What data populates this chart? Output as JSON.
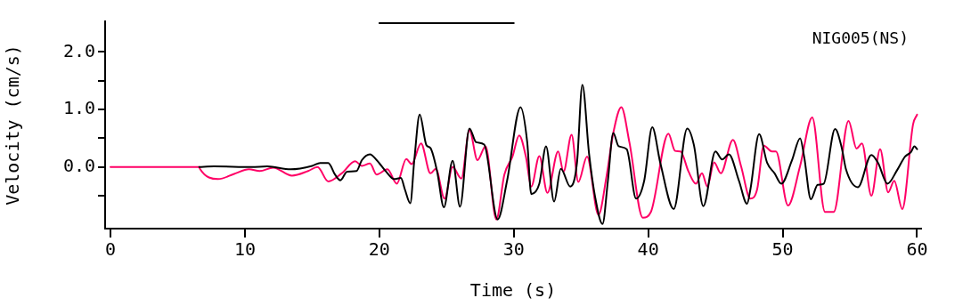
{
  "chart_data": {
    "type": "line",
    "xlabel": "Time (s)",
    "ylabel": "Velocity (cm/s)",
    "annotations": [
      "NIG005(NS)"
    ],
    "xlim": [
      -0.4,
      60.3
    ],
    "xticks": [
      0,
      10,
      20,
      30,
      40,
      50,
      60
    ],
    "ylim": [
      -1.07,
      2.53
    ],
    "yticks": [
      {
        "value": -0.5,
        "label": null
      },
      {
        "value": 0,
        "label": "0.0"
      },
      {
        "value": 0.5,
        "label": null
      },
      {
        "value": 1,
        "label": "1.0"
      },
      {
        "value": 1.5,
        "label": null
      },
      {
        "value": 2,
        "label": "2.0"
      }
    ],
    "grid": false,
    "legend": false,
    "marker": "none",
    "line_style": "solid",
    "series": [
      {
        "color": "#000000",
        "x": [
          20,
          30
        ],
        "values": [
          2.5,
          2.5
        ]
      },
      {
        "color": "#000000",
        "x": [
          6.6,
          7.7,
          10.5,
          11.66,
          13.4,
          15.0,
          15.6,
          16.2,
          16.7,
          17.1,
          17.6,
          18.3,
          18.7,
          19.3,
          19.8,
          20.5,
          21.1,
          21.6,
          21.9,
          22.3,
          22.6,
          23.0,
          23.5,
          23.8,
          24.3,
          24.8,
          25.45,
          26.0,
          26.7,
          27.2,
          27.8,
          28.8,
          29.5,
          30.5,
          31.0,
          31.3,
          31.9,
          32.4,
          33.0,
          33.5,
          34.2,
          34.7,
          35.1,
          35.6,
          36.05,
          36.6,
          37.0,
          37.4,
          37.8,
          38.4,
          39.1,
          39.7,
          40.3,
          40.9,
          41.9,
          42.9,
          43.4,
          44.1,
          45.0,
          45.5,
          46.0,
          46.75,
          47.35,
          47.6,
          48.25,
          48.85,
          49.4,
          49.9,
          50.7,
          51.3,
          51.6,
          52.1,
          52.6,
          53.05,
          53.9,
          54.4,
          54.7,
          55.6,
          56.6,
          57.1,
          57.8,
          58.5,
          59.1,
          59.55,
          59.8,
          60.0
        ],
        "values": [
          0,
          0.01,
          0,
          0.01,
          -0.04,
          0.02,
          0.07,
          0.07,
          -0.13,
          -0.23,
          -0.08,
          -0.07,
          0.12,
          0.22,
          0.12,
          -0.08,
          -0.21,
          -0.19,
          -0.39,
          -0.63,
          0.12,
          0.91,
          0.38,
          0.33,
          -0.08,
          -0.7,
          0.11,
          -0.69,
          0.67,
          0.43,
          0.39,
          -0.91,
          -0.24,
          1.04,
          0.43,
          -0.47,
          -0.29,
          0.36,
          -0.6,
          -0.03,
          -0.34,
          0.07,
          1.43,
          0.23,
          -0.52,
          -0.99,
          -0.24,
          0.59,
          0.36,
          0.31,
          -0.55,
          -0.24,
          0.69,
          0.07,
          -0.73,
          0.67,
          0.38,
          -0.68,
          0.27,
          0.13,
          0.22,
          -0.24,
          -0.64,
          -0.39,
          0.57,
          0.07,
          -0.11,
          -0.29,
          0.12,
          0.5,
          0.18,
          -0.56,
          -0.31,
          -0.29,
          0.66,
          0.33,
          -0.03,
          -0.35,
          0.21,
          0.07,
          -0.29,
          -0.06,
          0.18,
          0.26,
          0.36,
          0.31
        ]
      },
      {
        "color": "#ff0066",
        "x": [
          0,
          6.6,
          6.65,
          8.0,
          9.2,
          10.3,
          11.1,
          12.1,
          13.5,
          14.7,
          15.4,
          16.2,
          17.2,
          18.2,
          18.7,
          19.3,
          19.8,
          20.6,
          21.3,
          22.0,
          22.4,
          23.1,
          23.8,
          24.2,
          24.85,
          25.45,
          26.1,
          26.7,
          27.3,
          27.9,
          28.7,
          29.3,
          29.9,
          30.4,
          30.9,
          31.3,
          31.9,
          32.5,
          33.3,
          33.7,
          34.3,
          34.8,
          35.45,
          36.3,
          36.9,
          37.4,
          38.0,
          38.6,
          39.6,
          40.2,
          41.5,
          42.0,
          42.4,
          43.0,
          43.55,
          44.0,
          44.4,
          44.9,
          45.4,
          46.3,
          46.9,
          47.6,
          48.1,
          48.6,
          49.2,
          49.5,
          50.4,
          51.3,
          52.2,
          53.15,
          53.8,
          54.9,
          55.5,
          55.9,
          56.6,
          57.25,
          57.85,
          58.3,
          58.9,
          59.7,
          60.0
        ],
        "values": [
          0,
          0,
          -0.03,
          -0.21,
          -0.12,
          -0.04,
          -0.07,
          -0.01,
          -0.15,
          -0.07,
          0,
          -0.25,
          -0.11,
          0.1,
          0.02,
          0.06,
          -0.13,
          -0.04,
          -0.29,
          0.14,
          0.05,
          0.41,
          -0.11,
          -0.03,
          -0.55,
          0,
          -0.2,
          0.64,
          0.12,
          0.36,
          -0.91,
          -0.13,
          0.18,
          0.55,
          0.18,
          -0.34,
          0.19,
          -0.45,
          0.27,
          -0.08,
          0.56,
          -0.26,
          0.18,
          -0.83,
          -0.16,
          0.59,
          1.04,
          0.43,
          -0.88,
          -0.78,
          0.58,
          0.28,
          0.27,
          -0.08,
          -0.29,
          -0.11,
          -0.34,
          0.08,
          -0.11,
          0.47,
          0.02,
          -0.55,
          -0.39,
          0.37,
          0.27,
          0.27,
          -0.67,
          0.02,
          0.86,
          -0.78,
          -0.78,
          0.8,
          0.32,
          0.41,
          -0.5,
          0.31,
          -0.44,
          -0.24,
          -0.73,
          0.74,
          0.91
        ]
      }
    ]
  }
}
